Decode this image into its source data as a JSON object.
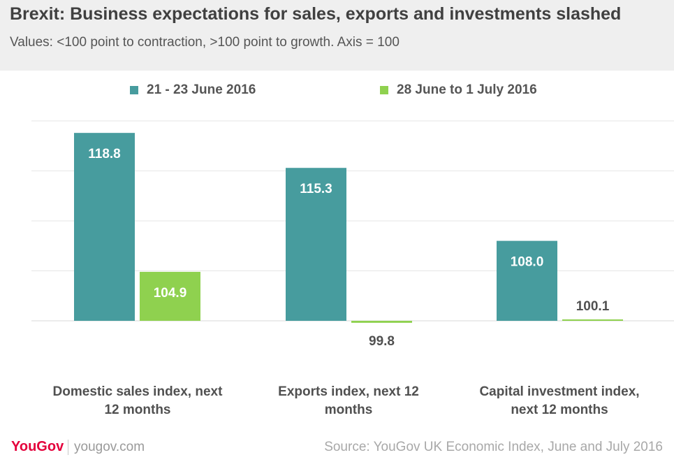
{
  "header": {
    "title": "Brexit: Business expectations for sales, exports and investments slashed",
    "subtitle": "Values: <100 point to contraction, >100 point to growth. Axis = 100"
  },
  "colors": {
    "series1": "#479c9e",
    "series2": "#8fd14f",
    "label_dark": "#505050",
    "grid": "#e6e6e6",
    "brand": "#e4003b"
  },
  "chart_data": {
    "type": "bar",
    "baseline": 100,
    "ylim": [
      100,
      119.5
    ],
    "categories": [
      [
        "Domestic sales index, next",
        "12 months"
      ],
      [
        "Exports index, next 12",
        "months"
      ],
      [
        "Capital investment index,",
        "next 12 months"
      ]
    ],
    "series": [
      {
        "name": "21 - 23 June 2016",
        "values": [
          118.8,
          115.3,
          108.0
        ],
        "labels": [
          "118.8",
          "115.3",
          "108.0"
        ]
      },
      {
        "name": "28 June to 1 July 2016",
        "values": [
          104.9,
          99.8,
          100.1
        ],
        "labels": [
          "104.9",
          "99.8",
          "100.1"
        ]
      }
    ],
    "grid": true,
    "legend": "top"
  },
  "footer": {
    "logo": "YouGov",
    "url": "yougov.com",
    "source": "Source: YouGov UK Economic Index, June and July 2016"
  }
}
